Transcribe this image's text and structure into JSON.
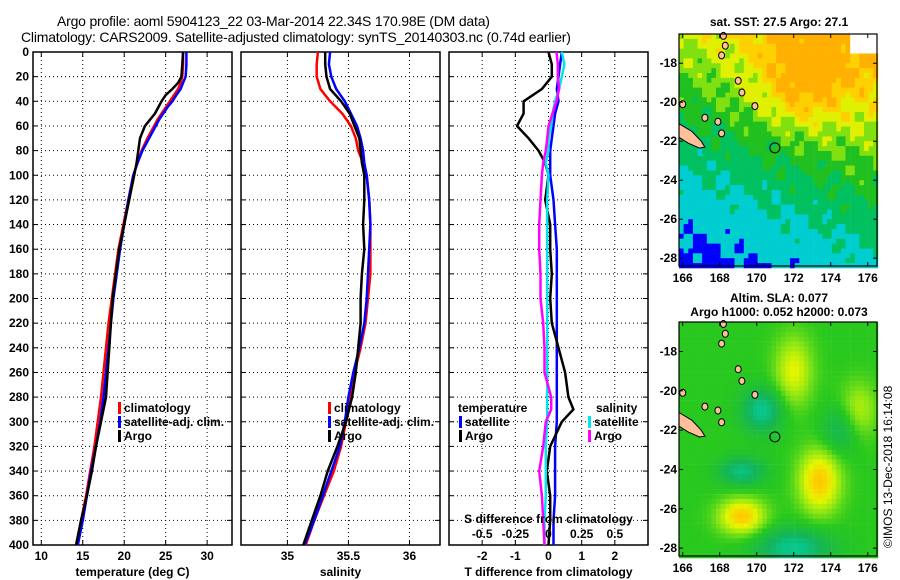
{
  "header": {
    "title_line1": "Argo profile: aoml 5904123_22 03-Mar-2014 22.34S 170.98E (DM data)",
    "title_line2": "Climatology: CARS2009. Satellite-adjusted climatology: synTS_20140303.nc (0.74d earlier)"
  },
  "colors": {
    "climatology": "#ff0000",
    "satellite_adj": "#0000ff",
    "argo": "#000000",
    "salinity_satellite": "#00e5ee",
    "salinity_argo": "#ff00ff"
  },
  "chart_data": [
    {
      "type": "line",
      "name": "temperature-profile",
      "xlabel": "temperature (deg C)",
      "ylabel": "",
      "xlim": [
        9,
        33
      ],
      "ylim": [
        400,
        0
      ],
      "xticks": [
        10,
        15,
        20,
        25,
        30
      ],
      "yticks": [
        0,
        20,
        40,
        60,
        80,
        100,
        120,
        140,
        160,
        180,
        200,
        220,
        240,
        260,
        280,
        300,
        320,
        340,
        360,
        380,
        400
      ],
      "grid": true,
      "legend": {
        "placement": "right-lower",
        "entries": [
          "climatology",
          "satellite-adj. clim.",
          "Argo"
        ]
      },
      "depth": [
        0,
        10,
        20,
        25,
        30,
        35,
        40,
        45,
        50,
        55,
        60,
        70,
        80,
        90,
        100,
        120,
        140,
        160,
        180,
        200,
        220,
        240,
        260,
        280,
        300,
        320,
        340,
        360,
        380,
        400
      ],
      "series": [
        {
          "name": "climatology",
          "color": "#ff0000",
          "values": [
            27.1,
            27.1,
            27.0,
            26.8,
            26.5,
            26.0,
            25.5,
            25.0,
            24.5,
            24.0,
            23.6,
            22.8,
            22.1,
            21.6,
            21.1,
            20.5,
            19.9,
            19.3,
            18.9,
            18.5,
            18.1,
            17.8,
            17.5,
            17.2,
            16.8,
            16.4,
            15.9,
            15.4,
            14.8,
            14.2
          ]
        },
        {
          "name": "satellite-adj. clim.",
          "color": "#0000ff",
          "values": [
            27.5,
            27.5,
            27.4,
            27.1,
            26.8,
            26.3,
            25.8,
            25.2,
            24.7,
            24.2,
            23.8,
            23.0,
            22.2,
            21.6,
            21.1,
            20.5,
            20.0,
            19.5,
            19.1,
            18.7,
            18.4,
            18.1,
            17.8,
            17.5,
            17.1,
            16.6,
            16.0,
            15.5,
            15.0,
            14.4
          ]
        },
        {
          "name": "Argo",
          "color": "#000000",
          "values": [
            27.1,
            27.0,
            26.9,
            26.5,
            25.8,
            25.0,
            24.5,
            24.1,
            23.7,
            23.1,
            22.5,
            21.9,
            21.7,
            21.5,
            21.2,
            20.6,
            20.0,
            19.4,
            19.0,
            18.6,
            18.4,
            18.2,
            18.0,
            17.8,
            17.2,
            16.6,
            16.1,
            15.5,
            14.8,
            14.2
          ]
        }
      ]
    },
    {
      "type": "line",
      "name": "salinity-profile",
      "xlabel": "salinity",
      "xlim": [
        34.62,
        36.25
      ],
      "ylim": [
        400,
        0
      ],
      "xticks": [
        35,
        35.5,
        36
      ],
      "grid": true,
      "legend": {
        "placement": "right-lower",
        "entries": [
          "climatology",
          "satellite-adj. clim.",
          "Argo"
        ]
      },
      "depth": [
        0,
        10,
        20,
        30,
        40,
        50,
        60,
        70,
        80,
        90,
        100,
        120,
        140,
        160,
        180,
        200,
        220,
        240,
        260,
        280,
        300,
        320,
        340,
        360,
        380,
        400
      ],
      "series": [
        {
          "name": "climatology",
          "color": "#ff0000",
          "values": [
            35.25,
            35.24,
            35.24,
            35.27,
            35.35,
            35.45,
            35.52,
            35.56,
            35.58,
            35.62,
            35.65,
            35.67,
            35.68,
            35.68,
            35.68,
            35.66,
            35.64,
            35.6,
            35.55,
            35.52,
            35.48,
            35.44,
            35.38,
            35.3,
            35.22,
            35.15
          ]
        },
        {
          "name": "satellite-adj. clim.",
          "color": "#0000ff",
          "values": [
            35.35,
            35.34,
            35.36,
            35.4,
            35.47,
            35.52,
            35.57,
            35.6,
            35.62,
            35.63,
            35.65,
            35.67,
            35.68,
            35.67,
            35.66,
            35.65,
            35.63,
            35.59,
            35.54,
            35.5,
            35.47,
            35.43,
            35.36,
            35.29,
            35.22,
            35.14
          ]
        },
        {
          "name": "Argo",
          "color": "#000000",
          "values": [
            35.31,
            35.31,
            35.32,
            35.35,
            35.44,
            35.51,
            35.55,
            35.59,
            35.6,
            35.61,
            35.63,
            35.63,
            35.62,
            35.63,
            35.61,
            35.6,
            35.6,
            35.58,
            35.56,
            35.53,
            35.48,
            35.41,
            35.33,
            35.27,
            35.2,
            35.13
          ]
        }
      ]
    },
    {
      "type": "line",
      "name": "difference-profile",
      "xlabel": "T difference from climatology",
      "xlabel2": "S difference from climatology",
      "xlim": [
        -3,
        3
      ],
      "xlim_salinity": [
        -0.75,
        0.75
      ],
      "xticks": [
        -2,
        -1,
        0,
        1,
        2
      ],
      "xticks_salinity": [
        -0.5,
        -0.25,
        0,
        0.25,
        0.5
      ],
      "grid": true,
      "legend": {
        "temperature": {
          "title": "temperature",
          "entries": [
            "satellite",
            "Argo"
          ]
        },
        "salinity": {
          "title": "salinity",
          "entries": [
            "satellite",
            "Argo"
          ]
        }
      },
      "depth": [
        0,
        10,
        20,
        30,
        40,
        50,
        60,
        70,
        80,
        90,
        100,
        120,
        140,
        160,
        180,
        200,
        220,
        240,
        260,
        280,
        290,
        300,
        320,
        340,
        360,
        380,
        400
      ],
      "series": [
        {
          "name": "temperature satellite",
          "axis": "T",
          "color": "#0000ff",
          "values": [
            0.4,
            0.35,
            0.3,
            0.25,
            0.3,
            0.2,
            0.15,
            0.1,
            0.05,
            0.05,
            0.05,
            0.15,
            0.2,
            0.25,
            0.25,
            0.25,
            0.25,
            0.25,
            0.25,
            0.25,
            0.25,
            0.25,
            0.2,
            0.2,
            0.2,
            0.15,
            0.15
          ]
        },
        {
          "name": "temperature Argo",
          "axis": "T",
          "color": "#000000",
          "values": [
            0.0,
            0.1,
            0.1,
            -0.2,
            -0.75,
            -0.75,
            -0.95,
            -0.6,
            -0.3,
            -0.1,
            0.0,
            -0.1,
            0.05,
            0.05,
            0.1,
            0.05,
            0.1,
            0.3,
            0.5,
            0.6,
            0.75,
            0.4,
            0.05,
            -0.05,
            0.05,
            0.05,
            0.0
          ]
        },
        {
          "name": "salinity satellite",
          "axis": "S",
          "color": "#00e5ee",
          "values": [
            0.1,
            0.12,
            0.1,
            0.08,
            0.05,
            0.03,
            0.02,
            0.0,
            0.0,
            -0.02,
            0.0,
            -0.01,
            -0.01,
            -0.01,
            -0.01,
            -0.01,
            -0.01,
            -0.01,
            -0.01,
            -0.01,
            -0.01,
            -0.01,
            -0.02,
            -0.02,
            -0.02,
            -0.03,
            -0.03
          ]
        },
        {
          "name": "salinity Argo",
          "axis": "S",
          "color": "#ff00ff",
          "values": [
            0.06,
            0.07,
            0.07,
            0.08,
            0.06,
            0.03,
            0.0,
            -0.01,
            -0.02,
            -0.04,
            -0.05,
            -0.06,
            -0.07,
            -0.07,
            -0.06,
            -0.06,
            -0.04,
            -0.03,
            -0.03,
            0.02,
            0.02,
            -0.02,
            -0.04,
            -0.07,
            -0.05,
            -0.04,
            -0.03
          ]
        }
      ]
    },
    {
      "type": "heatmap",
      "name": "sst-map",
      "title": "sat. SST: 27.5 Argo: 27.1",
      "xlim": [
        165.8,
        176.5
      ],
      "ylim": [
        -28.4,
        -16.5
      ],
      "xticks": [
        166,
        168,
        170,
        172,
        174,
        176
      ],
      "yticks": [
        -18,
        -20,
        -22,
        -24,
        -26,
        -28
      ],
      "ytick_labels": [
        "-18",
        "-20",
        "-22",
        "-24",
        "-26",
        "-28"
      ],
      "marker": {
        "lon": 170.98,
        "lat": -22.34
      }
    },
    {
      "type": "heatmap",
      "name": "sla-map",
      "title": "Altim. SLA: 0.077",
      "subtitle": "Argo h1000: 0.052 h2000: 0.073",
      "xlim": [
        165.8,
        176.5
      ],
      "ylim": [
        -28.4,
        -16.5
      ],
      "xticks": [
        166,
        168,
        170,
        172,
        174,
        176
      ],
      "yticks": [
        -18,
        -20,
        -22,
        -24,
        -26,
        -28
      ],
      "ytick_labels": [
        "-18",
        "-20",
        "-22",
        "-24",
        "-26",
        "-28"
      ],
      "marker": {
        "lon": 170.98,
        "lat": -22.34
      }
    }
  ],
  "footer": {
    "copyright": "©IMOS 13-Dec-2018 16:14:08"
  }
}
